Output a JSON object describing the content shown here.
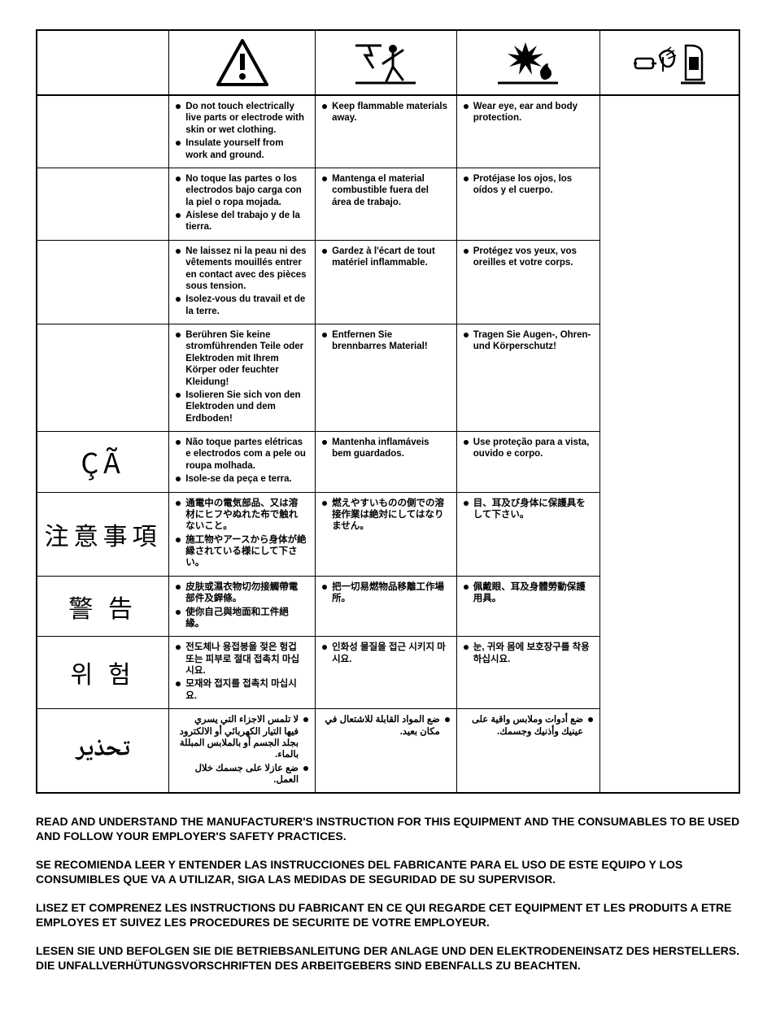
{
  "icons": {
    "warning": "warning-triangle",
    "shock": "electric-shock-person",
    "fire": "explosion-flames",
    "ppe": "eye-ear-body-protection"
  },
  "rows": [
    {
      "label": "",
      "labelClass": "",
      "rtl": false,
      "cells": [
        [
          "Do not touch electrically live parts or electrode with skin or wet clothing.",
          "Insulate yourself from work and ground."
        ],
        [
          "Keep flammable materials away."
        ],
        [
          "Wear eye, ear and body protection."
        ]
      ]
    },
    {
      "label": "",
      "labelClass": "",
      "rtl": false,
      "cells": [
        [
          "No toque las partes o los electrodos bajo carga con la piel o ropa mojada.",
          "Aislese del trabajo y de la tierra."
        ],
        [
          "Mantenga el material combustible fuera del área de trabajo."
        ],
        [
          "Protéjase los ojos, los oídos y el cuerpo."
        ]
      ]
    },
    {
      "label": "",
      "labelClass": "",
      "rtl": false,
      "cells": [
        [
          "Ne laissez ni la peau ni des vêtements mouillés entrer en contact avec des pièces sous tension.",
          "Isolez-vous du travail et de la terre."
        ],
        [
          "Gardez à l'écart de tout matériel inflammable."
        ],
        [
          "Protégez vos yeux, vos oreilles et votre corps."
        ]
      ]
    },
    {
      "label": "",
      "labelClass": "",
      "rtl": false,
      "cells": [
        [
          "Berühren Sie keine stromführenden Teile oder Elektroden mit Ihrem Körper oder feuchter Kleidung!",
          "Isolieren Sie sich von den Elektroden und dem Erdboden!"
        ],
        [
          "Entfernen Sie brennbarres Material!"
        ],
        [
          "Tragen Sie Augen-, Ohren- und Körperschutz!"
        ]
      ]
    },
    {
      "label": "ÇÃ",
      "labelClass": "",
      "rtl": false,
      "cells": [
        [
          "Não toque partes elétricas e electrodos com a pele ou roupa molhada.",
          "Isole-se da peça e terra."
        ],
        [
          "Mantenha inflamáveis bem guardados."
        ],
        [
          "Use proteção para a vista, ouvido e corpo."
        ]
      ]
    },
    {
      "label": "注意事項",
      "labelClass": "cjk",
      "rtl": false,
      "cells": [
        [
          "通電中の電気部品、又は溶材にヒフやぬれた布で触れないこと。",
          "施工物やアースから身体が絶縁されている様にして下さい。"
        ],
        [
          "燃えやすいものの側での溶接作業は絶対にしてはなりません。"
        ],
        [
          "目、耳及び身体に保護具をして下さい。"
        ]
      ]
    },
    {
      "label": "警 告",
      "labelClass": "cjk",
      "rtl": false,
      "cells": [
        [
          "皮肤或濕衣物切勿接觸帶電部件及銲條。",
          "使你自己與地面和工件絕緣。"
        ],
        [
          "把一切易燃物品移離工作場所。"
        ],
        [
          "佩戴眼、耳及身體勞動保護用具。"
        ]
      ]
    },
    {
      "label": "위 험",
      "labelClass": "cjk",
      "rtl": false,
      "cells": [
        [
          "전도체나 용접봉을 젖은 헝겁 또는 피부로 절대 접촉치 마십시요.",
          "모재와 접지를 접촉치 마십시요."
        ],
        [
          "인화성 물질을 접근 시키지 마시요."
        ],
        [
          "눈, 귀와 몸에 보호장구를 착용하십시요."
        ]
      ]
    },
    {
      "label": "تحذير",
      "labelClass": "ar",
      "rtl": true,
      "cells": [
        [
          "لا تلمس الاجزاء التي يسري فيها التيار الكهربائي أو الالكترود بجلد الجسم أو بالملابس المبللة بالماء.",
          "ضع عازلا على جسمك خلال العمل."
        ],
        [
          "ضع المواد القابلة للاشتعال في مكان بعيد."
        ],
        [
          "ضع أدوات وملابس واقية على عينيك وأذنيك وجسمك."
        ]
      ]
    }
  ],
  "footer": [
    "READ AND UNDERSTAND THE MANUFACTURER'S INSTRUCTION FOR THIS EQUIPMENT AND THE CONSUMABLES TO BE USED AND FOLLOW YOUR EMPLOYER'S SAFETY PRACTICES.",
    "SE RECOMIENDA LEER Y ENTENDER LAS INSTRUCCIONES DEL FABRICANTE PARA EL USO DE ESTE EQUIPO Y LOS CONSUMIBLES QUE VA A UTILIZAR, SIGA LAS MEDIDAS DE SEGURIDAD DE SU SUPERVISOR.",
    "LISEZ ET COMPRENEZ LES INSTRUCTIONS DU FABRICANT EN CE QUI REGARDE CET EQUIPMENT ET LES PRODUITS A ETRE EMPLOYES ET SUIVEZ LES PROCEDURES DE SECURITE DE VOTRE EMPLOYEUR.",
    "LESEN SIE UND BEFOLGEN SIE DIE BETRIEBSANLEITUNG DER ANLAGE UND DEN ELEKTRODENEINSATZ DES HERSTELLERS. DIE UNFALLVERHÜTUNGSVORSCHRIFTEN DES ARBEITGEBERS SIND EBENFALLS ZU BEACHTEN."
  ]
}
